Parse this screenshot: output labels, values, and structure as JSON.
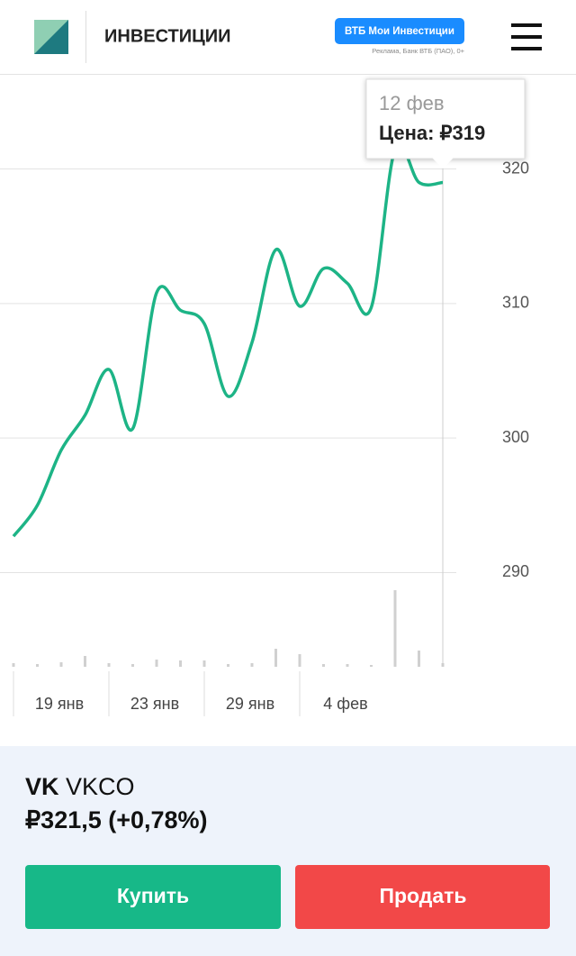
{
  "header": {
    "title": "ИНВЕСТИЦИИ",
    "button": "ВТБ Мои Инвестиции",
    "disclaimer": "Реклама, Банк ВТБ (ПАО), 0+"
  },
  "chart_data": {
    "type": "line",
    "color": "#1db486",
    "categories": [
      null,
      null,
      "19 янв",
      null,
      null,
      null,
      "23 янв",
      null,
      null,
      null,
      "29 янв",
      null,
      null,
      null,
      "4 фев",
      null,
      null,
      null,
      null
    ],
    "values": [
      292.7,
      295.0,
      299.1,
      301.7,
      305.1,
      300.7,
      310.8,
      309.5,
      308.5,
      303.1,
      307.1,
      314.0,
      309.8,
      312.6,
      311.5,
      309.7,
      321.5,
      319.0,
      319.0
    ],
    "volume": [
      4,
      3,
      5,
      12,
      4,
      3,
      8,
      7,
      7,
      3,
      4,
      20,
      14,
      3,
      3,
      2,
      85,
      18,
      4
    ],
    "ylim": [
      283,
      327
    ],
    "yticks": [
      290,
      300,
      310,
      320
    ],
    "grid": true,
    "tooltip": {
      "date": "12 фев",
      "text": "Цена: ₽319"
    }
  },
  "footer": {
    "name": "VK",
    "ticker": "VKCO",
    "price": "₽321,5 (+0,78%)",
    "buy": "Купить",
    "sell": "Продать"
  }
}
